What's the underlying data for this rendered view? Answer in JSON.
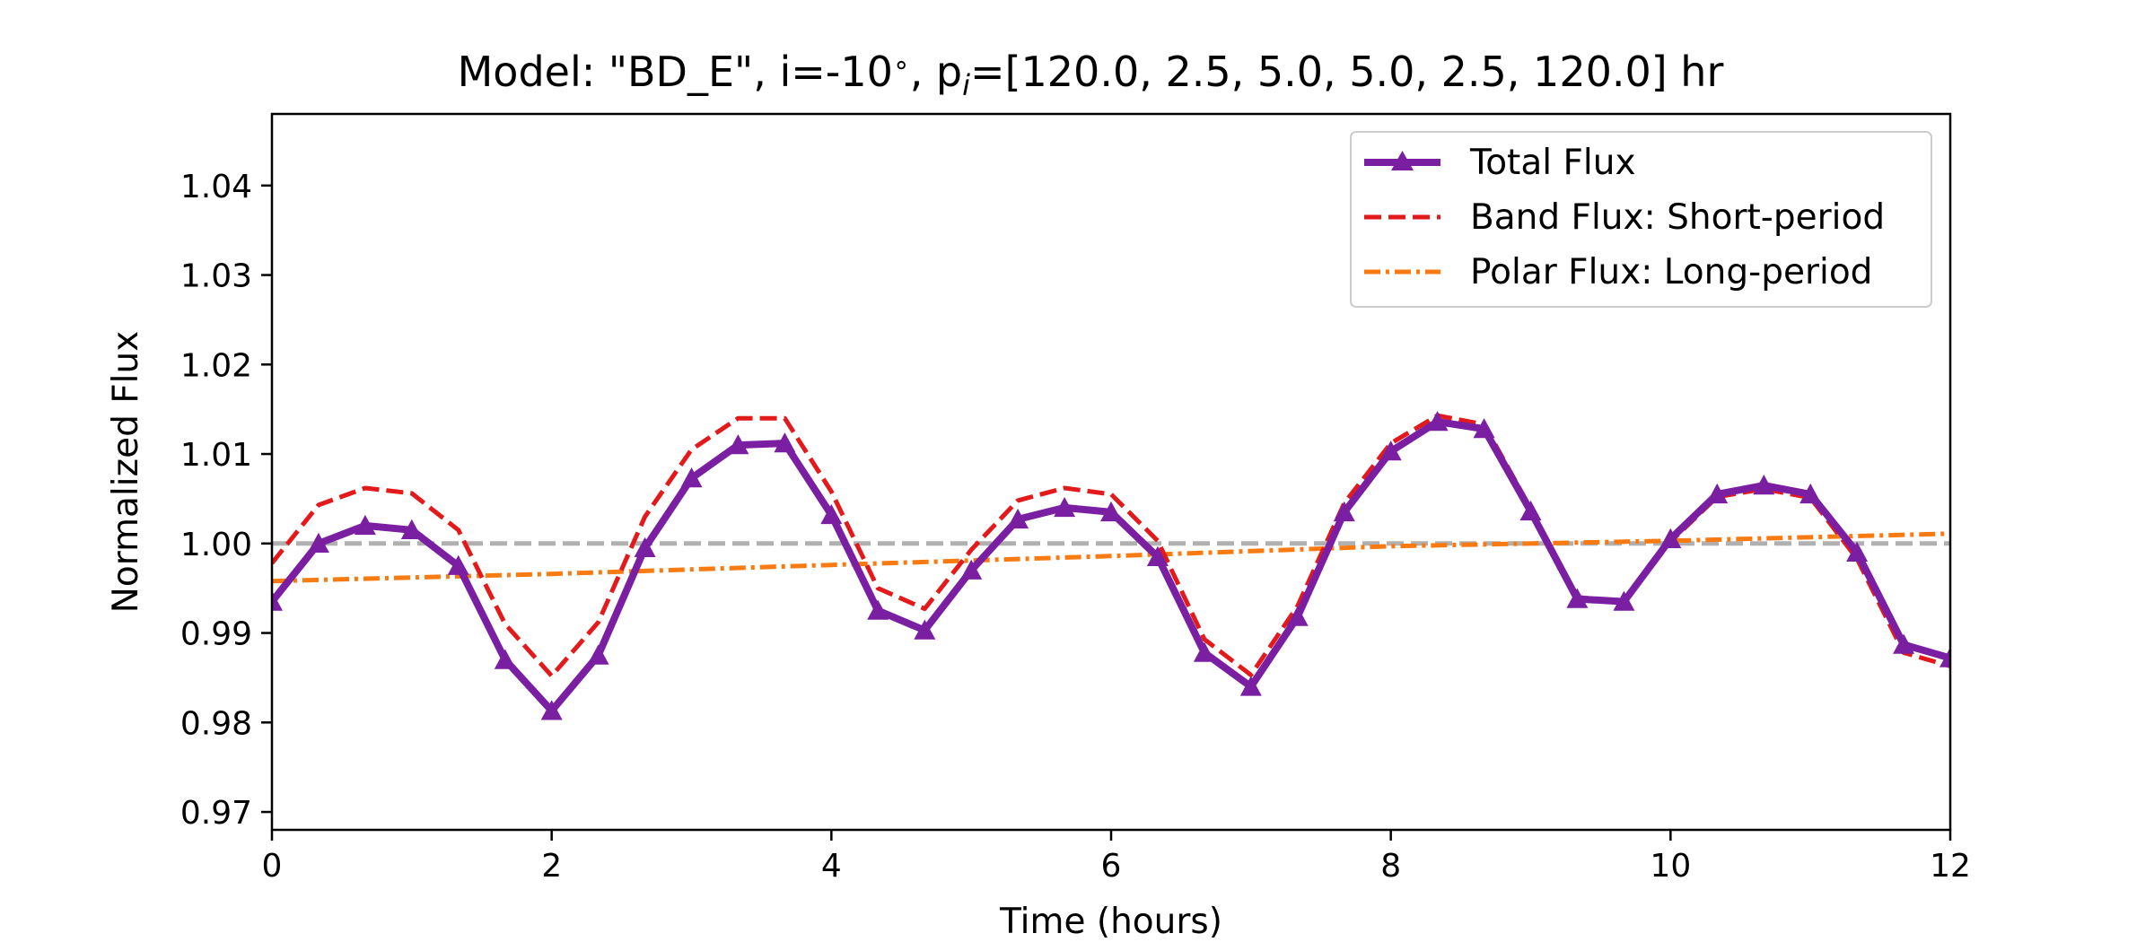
{
  "chart_data": {
    "type": "line",
    "title_main": "Model: \"BD_E\", i=-10",
    "title_deg": "∘",
    "title_mid": ", p",
    "title_sub": "i",
    "title_rest": "=[120.0, 2.5, 5.0, 5.0, 2.5, 120.0] hr",
    "xlabel": "Time (hours)",
    "ylabel": "Normalized Flux",
    "xlim": [
      0,
      12
    ],
    "ylim": [
      0.968,
      1.048
    ],
    "xticks": [
      "0",
      "2",
      "4",
      "6",
      "8",
      "10",
      "12"
    ],
    "yticks": [
      "0.97",
      "0.98",
      "0.99",
      "1.00",
      "1.01",
      "1.02",
      "1.03",
      "1.04"
    ],
    "grid": false,
    "legend_position": "top-right",
    "reference_line": {
      "y": 1.0,
      "color": "#b0b0b0"
    },
    "series": [
      {
        "name": "Total Flux",
        "color": "#7b1fa2",
        "style": "solid-triangle-markers",
        "x": [
          0,
          0.333,
          0.667,
          1.0,
          1.333,
          1.667,
          2.0,
          2.333,
          2.667,
          3.0,
          3.333,
          3.667,
          4.0,
          4.333,
          4.667,
          5.0,
          5.333,
          5.667,
          6.0,
          6.333,
          6.667,
          7.0,
          7.333,
          7.667,
          8.0,
          8.333,
          8.667,
          9.0,
          9.333,
          9.667,
          10.0,
          10.333,
          10.667,
          11.0,
          11.333,
          11.667,
          12.0
        ],
        "y": [
          0.9935,
          1.0,
          1.002,
          1.0015,
          0.9975,
          0.987,
          0.9813,
          0.9875,
          0.9995,
          1.0073,
          1.011,
          1.0112,
          1.0032,
          0.9925,
          0.9903,
          0.997,
          1.0027,
          1.004,
          1.0035,
          0.9985,
          0.9878,
          0.984,
          0.9918,
          1.0035,
          1.0103,
          1.0136,
          1.0128,
          1.0036,
          0.9938,
          0.9935,
          1.0005,
          1.0055,
          1.0065,
          1.0055,
          0.999,
          0.9887,
          0.9872
        ]
      },
      {
        "name": "Band Flux: Short-period",
        "color": "#e31a1c",
        "style": "dashed",
        "x": [
          0,
          0.333,
          0.667,
          1.0,
          1.333,
          1.667,
          2.0,
          2.333,
          2.667,
          3.0,
          3.333,
          3.667,
          4.0,
          4.333,
          4.667,
          5.0,
          5.333,
          5.667,
          6.0,
          6.333,
          6.667,
          7.0,
          7.333,
          7.667,
          8.0,
          8.333,
          8.667,
          9.0,
          9.333,
          9.667,
          10.0,
          10.333,
          10.667,
          11.0,
          11.333,
          11.667,
          12.0
        ],
        "y": [
          0.9978,
          1.0043,
          1.0062,
          1.0056,
          1.0015,
          0.991,
          0.9852,
          0.9912,
          1.003,
          1.0105,
          1.014,
          1.014,
          1.0058,
          0.995,
          0.9927,
          0.9993,
          1.0048,
          1.0062,
          1.0055,
          1.0003,
          0.9893,
          0.9853,
          0.993,
          1.0045,
          1.0112,
          1.0143,
          1.0133,
          1.0039,
          0.994,
          0.9934,
          1.0002,
          1.0052,
          1.0061,
          1.0051,
          0.9983,
          0.9878,
          0.9863
        ]
      },
      {
        "name": "Polar Flux: Long-period",
        "color": "#f97a10",
        "style": "dashdot",
        "x": [
          0,
          2,
          4,
          6,
          8,
          10,
          12
        ],
        "y": [
          0.9958,
          0.9966,
          0.9976,
          0.9986,
          0.9997,
          1.0003,
          1.0011
        ]
      }
    ]
  }
}
